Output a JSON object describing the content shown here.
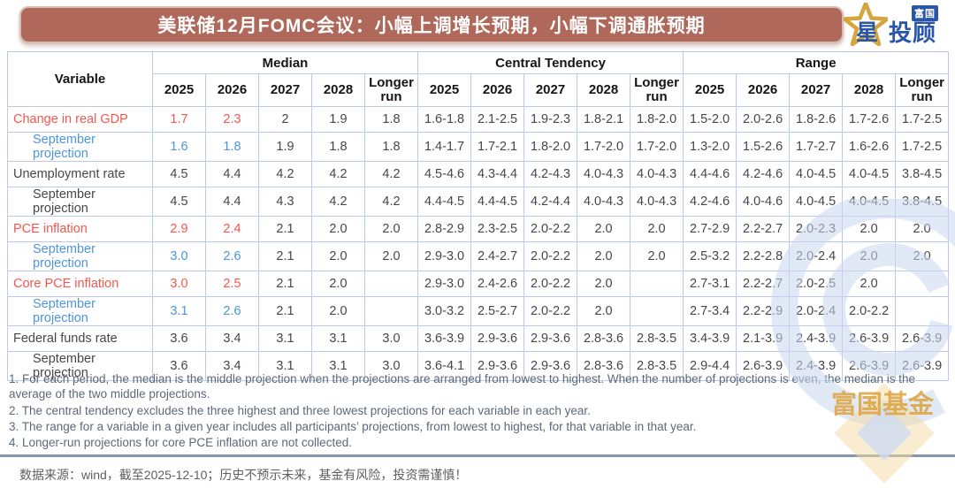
{
  "header": {
    "title": "美联储12月FOMC会议：小幅上调增长预期，小幅下调通胀预期",
    "logo": {
      "star_char": "星",
      "brand_top": "富国",
      "brand_main": "投顾"
    }
  },
  "chart_data": {
    "type": "table",
    "title": "美联储12月FOMC会议：小幅上调增长预期，小幅下调通胀预期",
    "variable_header": "Variable",
    "column_groups": [
      "Median",
      "Central Tendency",
      "Range"
    ],
    "years": [
      "2025",
      "2026",
      "2027",
      "2028",
      "Longer run"
    ],
    "rows": [
      {
        "label": "Change in real GDP",
        "color": "red",
        "highlight_count": 2,
        "indent": false,
        "median": [
          "1.7",
          "2.3",
          "2",
          "1.9",
          "1.8"
        ],
        "central": [
          "1.6-1.8",
          "2.1-2.5",
          "1.9-2.3",
          "1.8-2.1",
          "1.8-2.0"
        ],
        "range": [
          "1.5-2.0",
          "2.0-2.6",
          "1.8-2.6",
          "1.7-2.6",
          "1.7-2.5"
        ]
      },
      {
        "label": "September projection",
        "color": "blue",
        "highlight_count": 2,
        "indent": true,
        "median": [
          "1.6",
          "1.8",
          "1.9",
          "1.8",
          "1.8"
        ],
        "central": [
          "1.4-1.7",
          "1.7-2.1",
          "1.8-2.0",
          "1.7-2.0",
          "1.7-2.0"
        ],
        "range": [
          "1.3-2.0",
          "1.5-2.6",
          "1.7-2.7",
          "1.6-2.6",
          "1.7-2.5"
        ]
      },
      {
        "label": "Unemployment rate",
        "color": "dark",
        "highlight_count": 0,
        "indent": false,
        "median": [
          "4.5",
          "4.4",
          "4.2",
          "4.2",
          "4.2"
        ],
        "central": [
          "4.5-4.6",
          "4.3-4.4",
          "4.2-4.3",
          "4.0-4.3",
          "4.0-4.3"
        ],
        "range": [
          "4.4-4.6",
          "4.2-4.6",
          "4.0-4.5",
          "4.0-4.5",
          "3.8-4.5"
        ]
      },
      {
        "label": "September projection",
        "color": "dark",
        "highlight_count": 0,
        "indent": true,
        "median": [
          "4.5",
          "4.4",
          "4.3",
          "4.2",
          "4.2"
        ],
        "central": [
          "4.4-4.5",
          "4.4-4.5",
          "4.2-4.4",
          "4.0-4.3",
          "4.0-4.3"
        ],
        "range": [
          "4.2-4.6",
          "4.0-4.6",
          "4.0-4.5",
          "4.0-4.5",
          "3.8-4.5"
        ]
      },
      {
        "label": "PCE inflation",
        "color": "red",
        "highlight_count": 2,
        "indent": false,
        "median": [
          "2.9",
          "2.4",
          "2.1",
          "2.0",
          "2.0"
        ],
        "central": [
          "2.8-2.9",
          "2.3-2.5",
          "2.0-2.2",
          "2.0",
          "2.0"
        ],
        "range": [
          "2.7-2.9",
          "2.2-2.7",
          "2.0-2.3",
          "2.0",
          "2.0"
        ]
      },
      {
        "label": "September projection",
        "color": "blue",
        "highlight_count": 2,
        "indent": true,
        "median": [
          "3.0",
          "2.6",
          "2.1",
          "2.0",
          "2.0"
        ],
        "central": [
          "2.9-3.0",
          "2.4-2.7",
          "2.0-2.2",
          "2.0",
          "2.0"
        ],
        "range": [
          "2.5-3.2",
          "2.2-2.8",
          "2.0-2.4",
          "2.0",
          "2.0"
        ]
      },
      {
        "label": "Core PCE inflation",
        "color": "red",
        "highlight_count": 2,
        "indent": false,
        "median": [
          "3.0",
          "2.5",
          "2.1",
          "2.0",
          ""
        ],
        "central": [
          "2.9-3.0",
          "2.4-2.6",
          "2.0-2.2",
          "2.0",
          ""
        ],
        "range": [
          "2.7-3.1",
          "2.2-2.7",
          "2.0-2.5",
          "2.0",
          ""
        ]
      },
      {
        "label": "September projection",
        "color": "blue",
        "highlight_count": 2,
        "indent": true,
        "median": [
          "3.1",
          "2.6",
          "2.1",
          "2.0",
          ""
        ],
        "central": [
          "3.0-3.2",
          "2.5-2.7",
          "2.0-2.2",
          "2.0",
          ""
        ],
        "range": [
          "2.7-3.4",
          "2.2-2.9",
          "2.0-2.4",
          "2.0-2.2",
          ""
        ]
      },
      {
        "label": "Federal funds rate",
        "color": "dark",
        "highlight_count": 0,
        "indent": false,
        "median": [
          "3.6",
          "3.4",
          "3.1",
          "3.1",
          "3.0"
        ],
        "central": [
          "3.6-3.9",
          "2.9-3.6",
          "2.9-3.6",
          "2.8-3.6",
          "2.8-3.5"
        ],
        "range": [
          "3.4-3.9",
          "2.1-3.9",
          "2.4-3.9",
          "2.6-3.9",
          "2.6-3.9"
        ]
      },
      {
        "label": "September projection",
        "color": "dark",
        "highlight_count": 0,
        "indent": true,
        "median": [
          "3.6",
          "3.4",
          "3.1",
          "3.1",
          "3.0"
        ],
        "central": [
          "3.6-4.1",
          "2.9-3.6",
          "2.9-3.6",
          "2.8-3.6",
          "2.8-3.5"
        ],
        "range": [
          "2.9-4.4",
          "2.6-3.9",
          "2.4-3.9",
          "2.6-3.9",
          "2.6-3.9"
        ]
      }
    ]
  },
  "footnotes": [
    "1. For each period, the median is the middle projection when the projections are arranged from lowest to highest. When the number of projections is even, the median is the average of the two middle projections.",
    "2. The central tendency excludes the three highest and three lowest projections for each variable in each year.",
    "3. The range for a variable in a given year includes all participants’ projections, from lowest to highest, for that variable in that year.",
    "4. Longer-run projections for core PCE inflation are not collected."
  ],
  "source": "数据来源：wind，截至2025-12-10；历史不预示未来，基金有风险，投资需谨慎！",
  "watermark_text": "富国基金",
  "colors": {
    "title_bar": "#af685a",
    "highlight_red": "#f8564d",
    "highlight_blue": "#4e95d9",
    "table_border": "#bcc9e9",
    "brand_blue": "#2a56a7",
    "brand_gold": "#d6a63e"
  }
}
